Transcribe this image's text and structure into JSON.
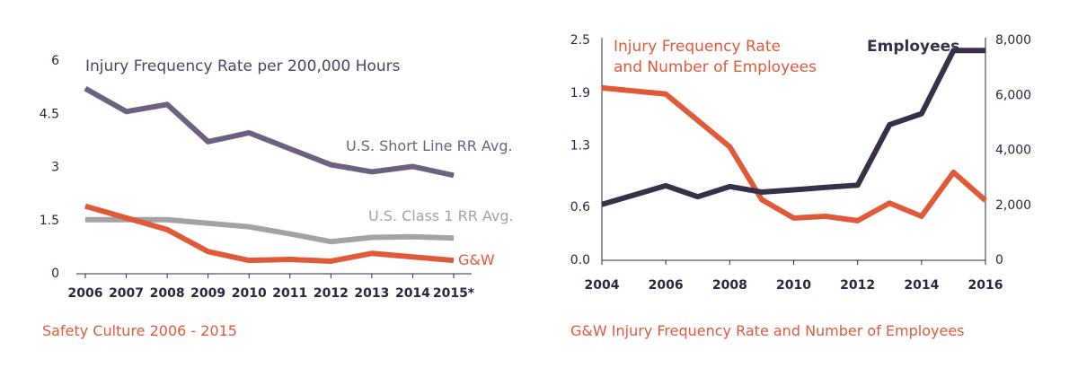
{
  "chart_data": [
    {
      "type": "line",
      "title": "Injury Frequency Rate per 200,000 Hours",
      "caption": "Safety Culture 2006 - 2015",
      "categories": [
        "2006",
        "2007",
        "2008",
        "2009",
        "2010",
        "2011",
        "2012",
        "2013",
        "2014",
        "2015*"
      ],
      "yticks": [
        "6",
        "4.5",
        "3",
        "1.5",
        "0"
      ],
      "ylim": [
        0,
        6
      ],
      "grid": false,
      "series": [
        {
          "name": "U.S. Short Line RR Avg.",
          "color": "#6d6180",
          "values": [
            5.2,
            4.55,
            4.75,
            3.7,
            3.95,
            3.5,
            3.05,
            2.85,
            3.0,
            2.75
          ]
        },
        {
          "name": "U.S. Class 1 RR Avg.",
          "color": "#a3a3a3",
          "values": [
            1.5,
            1.5,
            1.5,
            1.4,
            1.3,
            1.1,
            0.88,
            1.0,
            1.02,
            0.98
          ]
        },
        {
          "name": "G&W",
          "color": "#e05a3a",
          "values": [
            1.88,
            1.55,
            1.22,
            0.6,
            0.35,
            0.38,
            0.33,
            0.55,
            0.45,
            0.35
          ]
        }
      ]
    },
    {
      "type": "line",
      "title": "Injury Frequency Rate and Number of Employees",
      "title_lines": [
        "Injury Frequency Rate",
        "and Number of Employees"
      ],
      "caption": "G&W Injury Frequency Rate and Number of Employees",
      "xticks": [
        "2004",
        "2006",
        "2008",
        "2010",
        "2012",
        "2014",
        "2016"
      ],
      "xlim": [
        2004,
        2016
      ],
      "yticks_left": [
        "2.5",
        "1.9",
        "1.3",
        "0.6",
        "0.0"
      ],
      "ylim_left": [
        0,
        2.5
      ],
      "yticks_right": [
        "8,000",
        "6,000",
        "4,000",
        "2,000",
        "0"
      ],
      "ylim_right": [
        0,
        8000
      ],
      "grid": false,
      "series": [
        {
          "name": "Injury Frequency Rate",
          "axis": "left",
          "color": "#e05a3a",
          "x": [
            2004,
            2006,
            2008,
            2009,
            2010,
            2011,
            2012,
            2013,
            2014,
            2015,
            2016
          ],
          "values": [
            1.95,
            1.88,
            1.28,
            0.68,
            0.47,
            0.49,
            0.44,
            0.64,
            0.49,
            0.99,
            0.67
          ]
        },
        {
          "name": "Employees",
          "axis": "right",
          "color": "#373048",
          "x": [
            2004,
            2006,
            2007,
            2008,
            2009,
            2010,
            2011,
            2012,
            2013,
            2014,
            2015,
            2016
          ],
          "values": [
            2000,
            2680,
            2280,
            2650,
            2450,
            2530,
            2620,
            2700,
            4900,
            5300,
            7600,
            7600
          ]
        }
      ]
    }
  ]
}
